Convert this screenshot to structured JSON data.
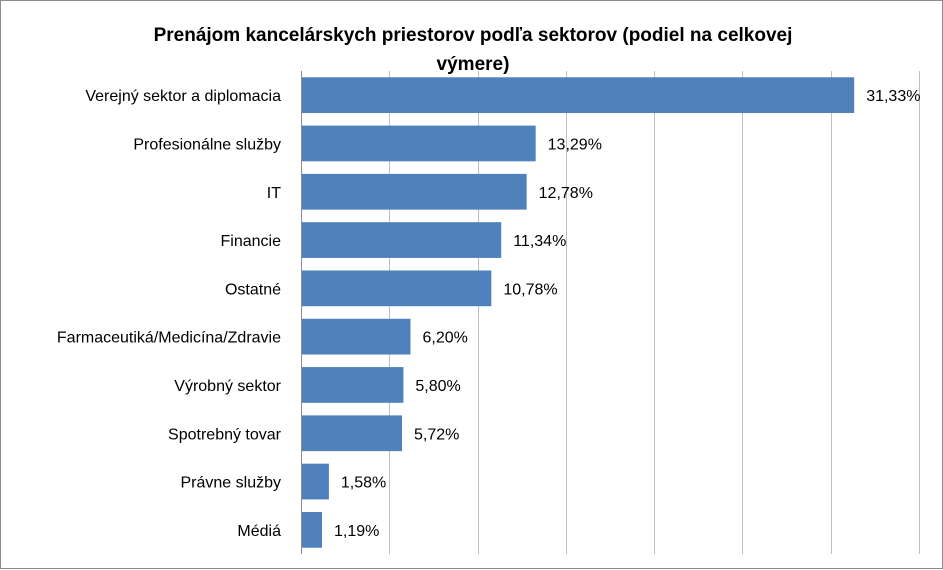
{
  "chart_data": {
    "type": "bar",
    "orientation": "horizontal",
    "title_lines": [
      "Prenájom kancelárskych priestorov podľa sektorov (podiel na celkovej",
      "výmere)"
    ],
    "categories": [
      "Verejný sektor a diplomacia",
      "Profesionálne služby",
      "IT",
      "Financie",
      "Ostatné",
      "Farmaceutiká/Medicína/Zdravie",
      "Výrobný sektor",
      "Spotrebný tovar",
      "Právne služby",
      "Médiá"
    ],
    "values": [
      31.33,
      13.29,
      12.78,
      11.34,
      10.78,
      6.2,
      5.8,
      5.72,
      1.58,
      1.19
    ],
    "value_labels": [
      "31,33%",
      "13,29%",
      "12,78%",
      "11,34%",
      "10,78%",
      "6,20%",
      "5,80%",
      "5,72%",
      "1,58%",
      "1,19%"
    ],
    "xlim": [
      0,
      35
    ],
    "gridlines_step": 5,
    "grid": true,
    "bar_color": "#4f81bd",
    "xlabel": "",
    "ylabel": ""
  }
}
